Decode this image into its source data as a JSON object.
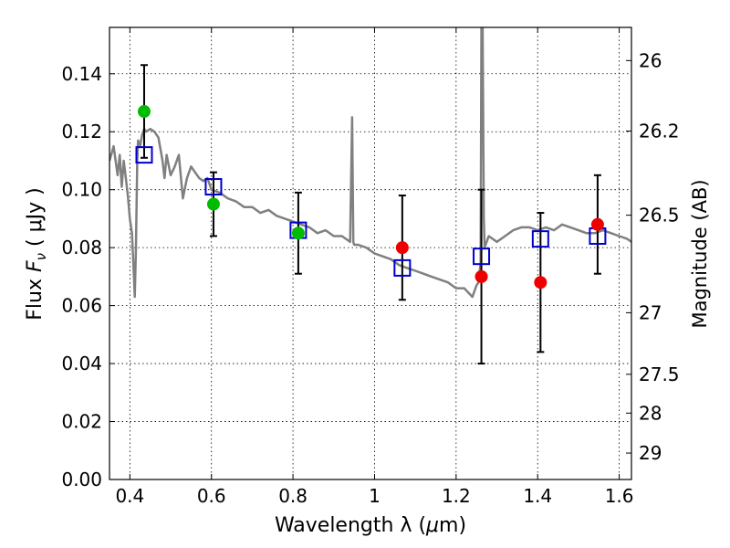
{
  "chart_data": {
    "type": "scatter",
    "xlabel": "Wavelength  λ (μm)",
    "ylabel": "Flux  Fν  ( μJy )",
    "ylabel_parts": {
      "prefix": "Flux  ",
      "symbol": "F",
      "subscript": "ν",
      "suffix": "  ( μJy )"
    },
    "xlabel_parts": {
      "prefix": "Wavelength  λ (",
      "mu": "μ",
      "suffix": "m)"
    },
    "y2label": "Magnitude (AB)",
    "xlim": [
      0.35,
      1.63
    ],
    "ylim": [
      0.0,
      0.156
    ],
    "grid": true,
    "x_ticks": [
      {
        "value": 0.4,
        "label": "0.4"
      },
      {
        "value": 0.6,
        "label": "0.6"
      },
      {
        "value": 0.8,
        "label": "0.8"
      },
      {
        "value": 1.0,
        "label": "1"
      },
      {
        "value": 1.2,
        "label": "1.2"
      },
      {
        "value": 1.4,
        "label": "1.4"
      },
      {
        "value": 1.6,
        "label": "1.6"
      }
    ],
    "y_ticks": [
      {
        "value": 0.0,
        "label": "0.00"
      },
      {
        "value": 0.02,
        "label": "0.02"
      },
      {
        "value": 0.04,
        "label": "0.04"
      },
      {
        "value": 0.06,
        "label": "0.06"
      },
      {
        "value": 0.08,
        "label": "0.08"
      },
      {
        "value": 0.1,
        "label": "0.10"
      },
      {
        "value": 0.12,
        "label": "0.12"
      },
      {
        "value": 0.14,
        "label": "0.14"
      }
    ],
    "y2_ticks": [
      {
        "mag": 26,
        "label": "26"
      },
      {
        "mag": 26.2,
        "label": "26.2"
      },
      {
        "mag": 26.5,
        "label": "26.5"
      },
      {
        "mag": 27,
        "label": "27"
      },
      {
        "mag": 27.5,
        "label": "27.5"
      },
      {
        "mag": 28,
        "label": "28"
      },
      {
        "mag": 29,
        "label": "29"
      }
    ],
    "series": [
      {
        "kind": "line",
        "color": "#808080",
        "x": [
          0.35,
          0.36,
          0.37,
          0.375,
          0.38,
          0.385,
          0.39,
          0.395,
          0.4,
          0.405,
          0.41,
          0.412,
          0.415,
          0.418,
          0.42,
          0.425,
          0.43,
          0.435,
          0.44,
          0.45,
          0.46,
          0.47,
          0.48,
          0.485,
          0.49,
          0.5,
          0.51,
          0.52,
          0.53,
          0.54,
          0.55,
          0.56,
          0.57,
          0.58,
          0.59,
          0.6,
          0.62,
          0.64,
          0.66,
          0.68,
          0.7,
          0.72,
          0.74,
          0.76,
          0.78,
          0.8,
          0.82,
          0.84,
          0.86,
          0.88,
          0.9,
          0.92,
          0.93,
          0.94,
          0.945,
          0.948,
          0.95,
          0.96,
          0.98,
          1.0,
          1.02,
          1.04,
          1.06,
          1.08,
          1.1,
          1.12,
          1.14,
          1.16,
          1.18,
          1.2,
          1.22,
          1.24,
          1.25,
          1.255,
          1.26,
          1.262,
          1.265,
          1.268,
          1.27,
          1.28,
          1.3,
          1.32,
          1.34,
          1.36,
          1.38,
          1.4,
          1.42,
          1.44,
          1.46,
          1.48,
          1.5,
          1.52,
          1.54,
          1.56,
          1.58,
          1.6,
          1.62,
          1.63
        ],
        "y": [
          0.11,
          0.115,
          0.105,
          0.112,
          0.101,
          0.11,
          0.104,
          0.098,
          0.09,
          0.085,
          0.07,
          0.063,
          0.08,
          0.11,
          0.117,
          0.115,
          0.119,
          0.121,
          0.12,
          0.121,
          0.12,
          0.118,
          0.11,
          0.104,
          0.112,
          0.105,
          0.108,
          0.112,
          0.097,
          0.104,
          0.108,
          0.106,
          0.104,
          0.103,
          0.104,
          0.1,
          0.099,
          0.097,
          0.096,
          0.094,
          0.094,
          0.092,
          0.093,
          0.091,
          0.09,
          0.089,
          0.088,
          0.087,
          0.085,
          0.086,
          0.084,
          0.084,
          0.083,
          0.082,
          0.125,
          0.082,
          0.081,
          0.081,
          0.08,
          0.078,
          0.077,
          0.076,
          0.074,
          0.073,
          0.072,
          0.071,
          0.07,
          0.069,
          0.068,
          0.066,
          0.066,
          0.063,
          0.067,
          0.068,
          0.075,
          0.156,
          0.156,
          0.09,
          0.08,
          0.084,
          0.082,
          0.084,
          0.086,
          0.087,
          0.087,
          0.086,
          0.087,
          0.086,
          0.088,
          0.087,
          0.086,
          0.085,
          0.085,
          0.086,
          0.085,
          0.084,
          0.083,
          0.082
        ]
      },
      {
        "kind": "squares",
        "color": "#0000cc",
        "x": [
          0.435,
          0.605,
          0.813,
          1.068,
          1.262,
          1.407,
          1.547
        ],
        "y": [
          0.112,
          0.101,
          0.086,
          0.073,
          0.077,
          0.083,
          0.084
        ]
      },
      {
        "kind": "points",
        "color": "#00bb00",
        "x": [
          0.435,
          0.605,
          0.813
        ],
        "y": [
          0.127,
          0.095,
          0.085
        ],
        "err": [
          0.016,
          0.011,
          0.014
        ]
      },
      {
        "kind": "points",
        "color": "#ee0000",
        "x": [
          1.068,
          1.262,
          1.407,
          1.547
        ],
        "y": [
          0.08,
          0.07,
          0.068,
          0.088
        ],
        "err": [
          0.018,
          0.03,
          0.024,
          0.017
        ]
      }
    ]
  }
}
